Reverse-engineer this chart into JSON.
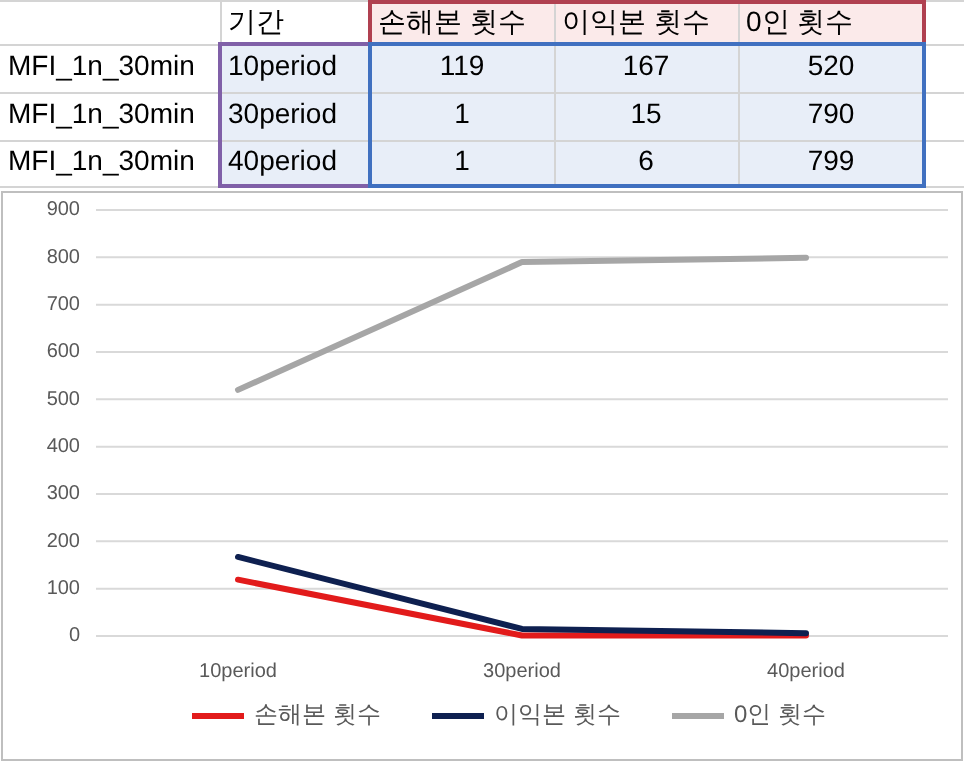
{
  "chart_data": [
    {
      "type": "heatmap",
      "categories": [
        "손해본 횟수",
        "이익본 횟수",
        "0인 횟수"
      ],
      "y_categories": [
        "MFI_1n_30min",
        "MFI_1n_30min",
        "MFI_1n_30min"
      ],
      "y2_categories": [
        "10period",
        "30period",
        "40period"
      ],
      "cells": [
        [
          119,
          167,
          520
        ],
        [
          1,
          15,
          790
        ],
        [
          1,
          6,
          799
        ]
      ],
      "data_labels": true,
      "annotations": [
        "기간"
      ]
    },
    {
      "type": "line",
      "categories": [
        "10period",
        "30period",
        "40period"
      ],
      "series": [
        {
          "name": "손해본 횟수",
          "color": "#e21b1b",
          "values": [
            119,
            1,
            1
          ]
        },
        {
          "name": "이익본 횟수",
          "color": "#0e2050",
          "values": [
            167,
            15,
            6
          ]
        },
        {
          "name": "0인 횟수",
          "color": "#a6a6a6",
          "values": [
            520,
            790,
            799
          ]
        }
      ],
      "ylim": [
        0,
        900
      ],
      "yticks": [
        0,
        100,
        200,
        300,
        400,
        500,
        600,
        700,
        800,
        900
      ],
      "grid": "y",
      "legend": "bottom"
    }
  ]
}
